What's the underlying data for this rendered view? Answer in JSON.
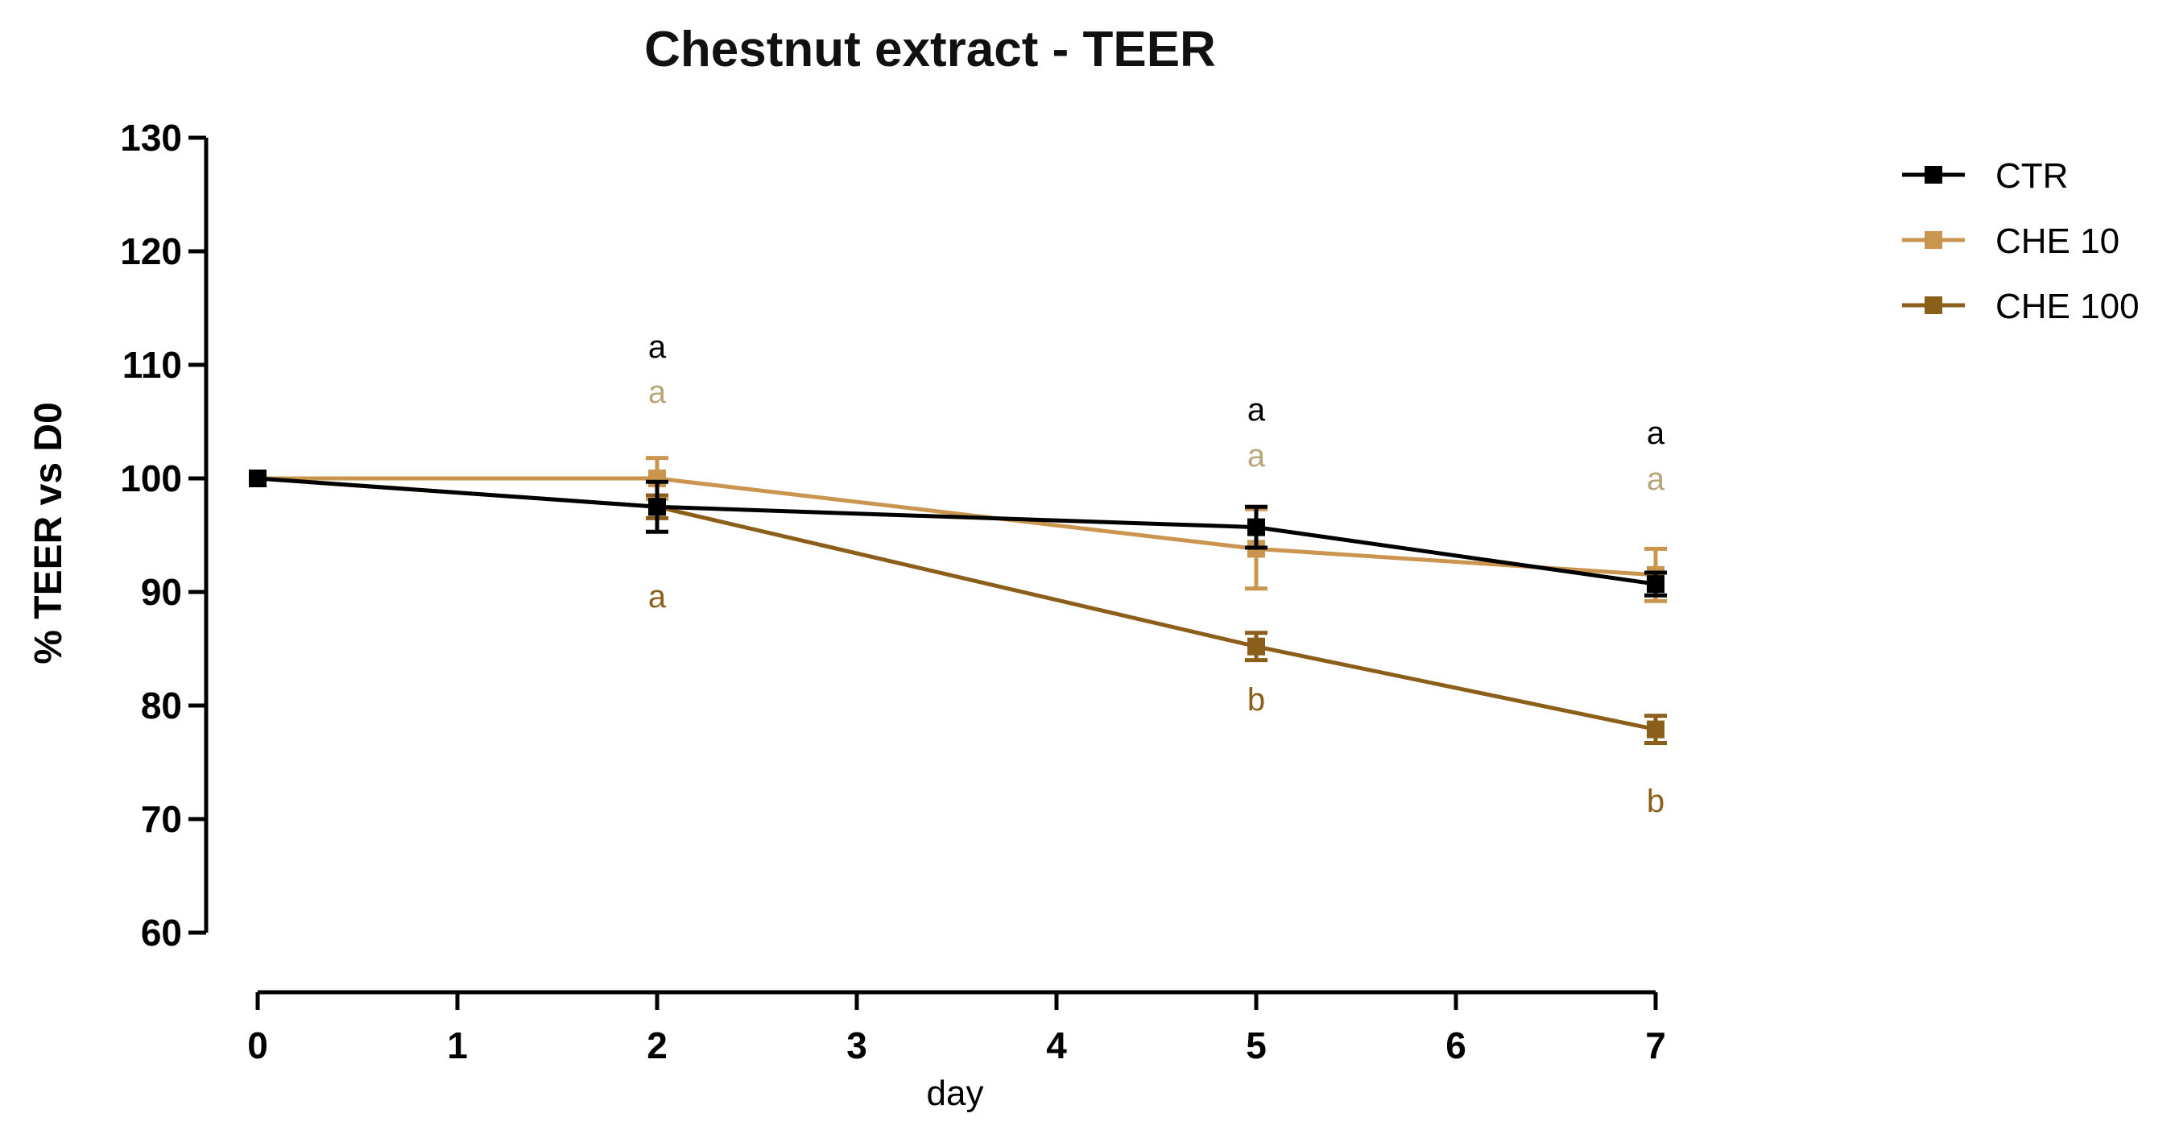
{
  "chart_data": {
    "type": "line",
    "title": "Chestnut extract - TEER",
    "xlabel": "day",
    "ylabel": "% TEER vs D0",
    "xlim": [
      0,
      7
    ],
    "ylim": [
      60,
      130
    ],
    "x_ticks": [
      "0",
      "1",
      "2",
      "3",
      "4",
      "5",
      "6",
      "7"
    ],
    "y_ticks": [
      "60",
      "70",
      "80",
      "90",
      "100",
      "110",
      "120",
      "130"
    ],
    "legend_position": "top-right",
    "series": [
      {
        "name": "CTR",
        "color": "#000000",
        "x": [
          0,
          2,
          5,
          7
        ],
        "y": [
          100,
          97.5,
          95.7,
          90.7
        ],
        "err": [
          0,
          2.2,
          1.8,
          1.0
        ],
        "labels": [
          "",
          "a",
          "a",
          "a"
        ]
      },
      {
        "name": "CHE 10",
        "color": "#c9954f",
        "label_color": "#b8a57a",
        "x": [
          0,
          2,
          5,
          7
        ],
        "y": [
          100,
          100,
          93.8,
          91.5
        ],
        "err": [
          0,
          1.8,
          3.5,
          2.3
        ],
        "labels": [
          "",
          "a",
          "a",
          "a"
        ]
      },
      {
        "name": "CHE 100",
        "color": "#8b5e1a",
        "x": [
          0,
          2,
          5,
          7
        ],
        "y": [
          100,
          97.5,
          85.2,
          77.9
        ],
        "err": [
          0,
          1.0,
          1.2,
          1.2
        ],
        "labels": [
          "",
          "a",
          "b",
          "b"
        ]
      }
    ]
  }
}
